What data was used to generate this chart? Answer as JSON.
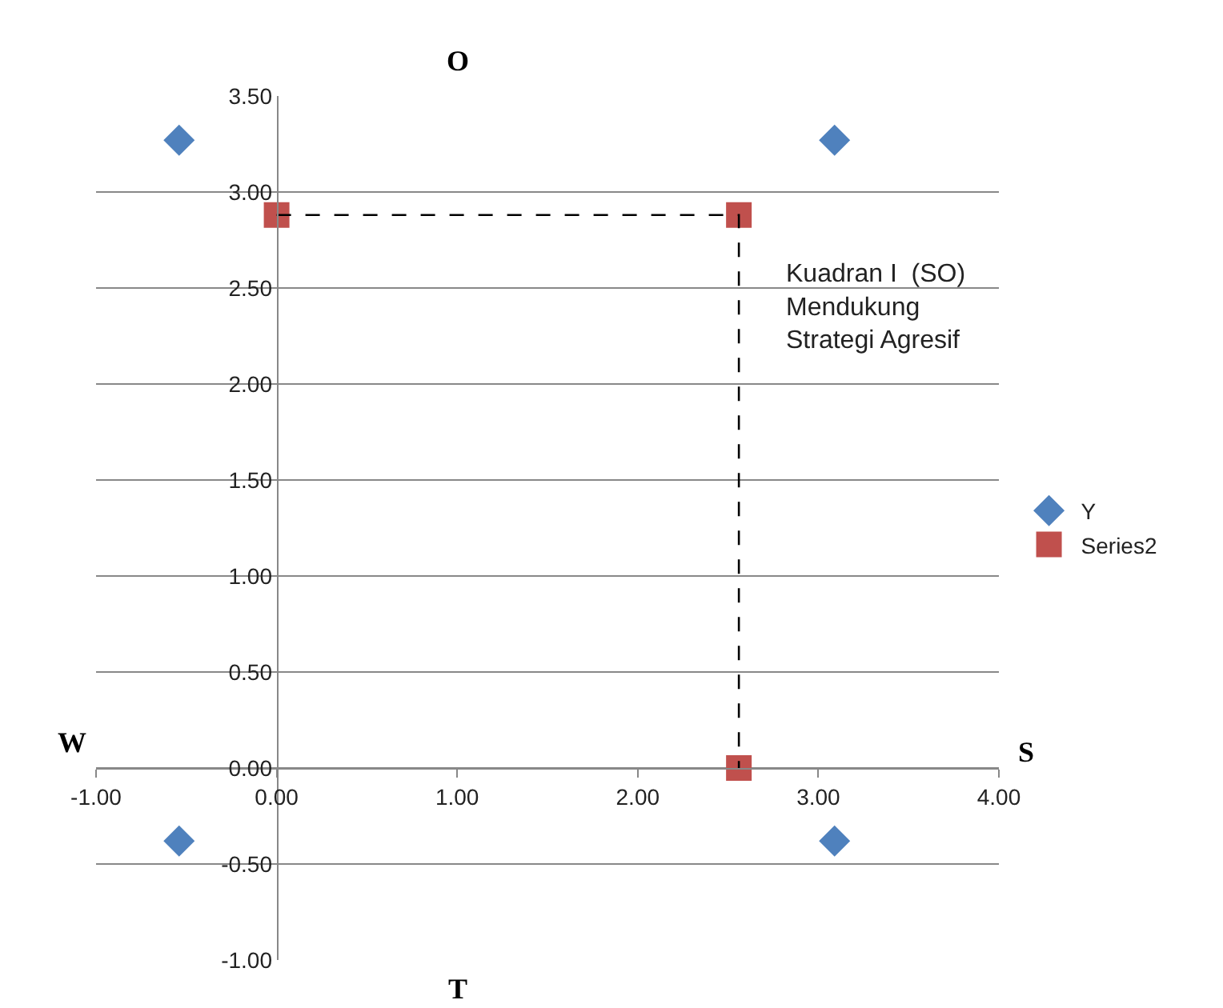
{
  "chart_data": {
    "type": "scatter",
    "series": [
      {
        "name": "Y",
        "marker": "diamond",
        "color": "#4f81bd",
        "x": [
          -0.54,
          3.09,
          -0.54,
          3.09
        ],
        "values": [
          3.27,
          3.27,
          -0.38,
          -0.38
        ]
      },
      {
        "name": "Series2",
        "marker": "square",
        "color": "#c0504d",
        "x": [
          0,
          2.56,
          2.56
        ],
        "values": [
          2.88,
          2.88,
          0
        ]
      },
      {
        "type": "line",
        "marker": "none",
        "line_style": "dashed",
        "color": "#000000",
        "x": [
          0,
          2.56,
          2.56
        ],
        "values": [
          2.88,
          2.88,
          0
        ]
      }
    ],
    "xlim": [
      -1,
      4
    ],
    "xticks": [
      {
        "value": -1,
        "label": "-1.00"
      },
      {
        "value": 0,
        "label": "0.00"
      },
      {
        "value": 1,
        "label": "1.00"
      },
      {
        "value": 2,
        "label": "2.00"
      },
      {
        "value": 3,
        "label": "3.00"
      },
      {
        "value": 4,
        "label": "4.00"
      }
    ],
    "ylim": [
      -1,
      3.5
    ],
    "yticks": [
      {
        "value": -1,
        "label": "-1.00"
      },
      {
        "value": -0.5,
        "label": "-0.50"
      },
      {
        "value": 0,
        "label": "0.00"
      },
      {
        "value": 0.5,
        "label": "0.50"
      },
      {
        "value": 1,
        "label": "1.00"
      },
      {
        "value": 1.5,
        "label": "1.50"
      },
      {
        "value": 2,
        "label": "2.00"
      },
      {
        "value": 2.5,
        "label": "2.50"
      },
      {
        "value": 3,
        "label": "3.00"
      },
      {
        "value": 3.5,
        "label": "3.50"
      }
    ],
    "grid": "y",
    "legend": "right",
    "annotations": [
      "O",
      "T",
      "W",
      "S",
      "Kuadran I  (SO)\nMendukung\nStrategi Agresif"
    ]
  }
}
